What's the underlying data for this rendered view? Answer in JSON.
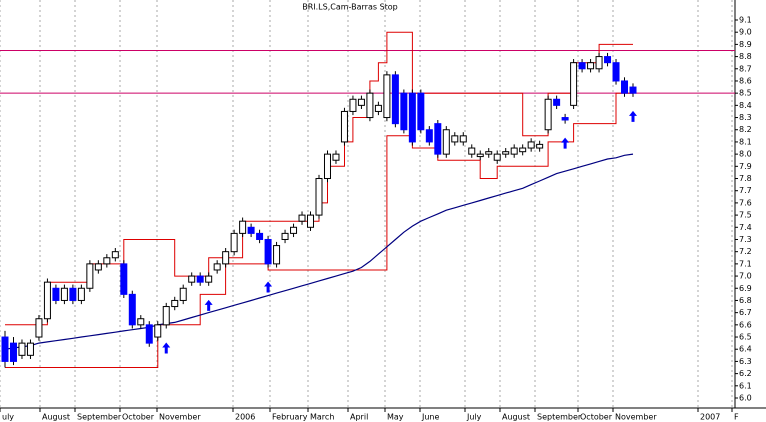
{
  "chart_data": {
    "type": "candlestick",
    "title": "BRI.LS,Cam-Barras Stop",
    "x_labels": [
      "uly",
      "August",
      "September",
      "October",
      "November",
      "2006",
      "February",
      "March",
      "April",
      "May",
      "June",
      "July",
      "August",
      "September",
      "October",
      "November",
      "2007",
      "F"
    ],
    "ylim": [
      6.0,
      9.1
    ],
    "yticks": [
      {
        "value": 6,
        "label": "6.0"
      },
      6.1,
      6.2,
      6.3,
      6.4,
      6.5,
      6.6,
      6.7,
      6.8,
      6.9,
      {
        "value": 7,
        "label": "7.0"
      },
      7.1,
      7.2,
      7.3,
      7.4,
      7.5,
      7.6,
      7.7,
      7.8,
      7.9,
      {
        "value": 8,
        "label": "8.0"
      },
      8.1,
      8.2,
      8.3,
      8.4,
      8.5,
      8.6,
      8.7,
      8.8,
      8.9,
      {
        "value": 9,
        "label": "9.0"
      },
      9.1
    ],
    "up_color": "#ffffff",
    "down_color": "#0000ff",
    "open": [
      6.5,
      6.45,
      6.35,
      6.35,
      6.5,
      6.65,
      6.9,
      6.8,
      6.9,
      6.8,
      6.9,
      7.05,
      7.1,
      7.15,
      7.1,
      6.85,
      6.6,
      6.6,
      6.5,
      6.6,
      6.75,
      6.8,
      6.95,
      7.0,
      6.95,
      7.05,
      7.1,
      7.2,
      7.35,
      7.4,
      7.35,
      7.3,
      7.1,
      7.3,
      7.35,
      7.45,
      7.4,
      7.5,
      7.8,
      7.95,
      8.1,
      8.35,
      8.4,
      8.3,
      8.35,
      8.3,
      8.65,
      8.5,
      8.5,
      8.5,
      8.2,
      8.25,
      8.0,
      8.1,
      8.1,
      8.0,
      7.98,
      8.0,
      7.95,
      8.0,
      8.0,
      8.02,
      8.05,
      8.05,
      8.2,
      8.45,
      8.3,
      8.4,
      8.75,
      8.7,
      8.7,
      8.8,
      8.75,
      8.6,
      8.55
    ],
    "high": [
      6.55,
      6.5,
      6.48,
      6.48,
      6.68,
      6.98,
      6.93,
      6.93,
      6.93,
      6.93,
      7.13,
      7.13,
      7.18,
      7.23,
      7.13,
      6.88,
      6.68,
      6.63,
      6.63,
      6.78,
      6.83,
      6.93,
      7.03,
      7.03,
      7.03,
      7.13,
      7.23,
      7.38,
      7.48,
      7.43,
      7.38,
      7.33,
      7.28,
      7.38,
      7.43,
      7.53,
      7.53,
      7.83,
      8.03,
      8.03,
      8.38,
      8.48,
      8.48,
      8.53,
      8.43,
      8.68,
      8.68,
      8.53,
      8.53,
      8.53,
      8.23,
      8.28,
      8.23,
      8.18,
      8.18,
      8.08,
      8.03,
      8.05,
      8.03,
      8.05,
      8.08,
      8.08,
      8.13,
      8.11,
      8.48,
      8.48,
      8.33,
      8.78,
      8.78,
      8.78,
      8.83,
      8.83,
      8.78,
      8.63,
      8.58
    ],
    "low": [
      6.25,
      6.27,
      6.32,
      6.32,
      6.47,
      6.62,
      6.77,
      6.77,
      6.77,
      6.77,
      6.87,
      7.02,
      7.07,
      7.12,
      6.82,
      6.57,
      6.57,
      6.42,
      6.47,
      6.57,
      6.72,
      6.77,
      6.92,
      6.92,
      6.92,
      7.02,
      7.07,
      7.17,
      7.32,
      7.32,
      7.27,
      7.07,
      7.07,
      7.27,
      7.32,
      7.42,
      7.37,
      7.47,
      7.77,
      7.92,
      8.07,
      8.32,
      8.37,
      8.27,
      8.32,
      8.27,
      8.22,
      8.17,
      8.07,
      8.17,
      8.07,
      7.97,
      7.97,
      8.07,
      8.07,
      7.97,
      7.95,
      7.97,
      7.92,
      7.97,
      7.97,
      7.99,
      8.02,
      8.02,
      8.17,
      8.37,
      8.25,
      8.37,
      8.67,
      8.67,
      8.67,
      8.72,
      8.57,
      8.47,
      8.47
    ],
    "close": [
      6.3,
      6.3,
      6.45,
      6.45,
      6.65,
      6.95,
      6.8,
      6.9,
      6.8,
      6.9,
      7.1,
      7.1,
      7.15,
      7.2,
      6.85,
      6.6,
      6.65,
      6.45,
      6.6,
      6.75,
      6.8,
      6.9,
      7.0,
      6.95,
      7.0,
      7.1,
      7.2,
      7.35,
      7.45,
      7.35,
      7.3,
      7.1,
      7.25,
      7.35,
      7.4,
      7.5,
      7.5,
      7.8,
      8.0,
      8.0,
      8.35,
      8.45,
      8.45,
      8.5,
      8.4,
      8.65,
      8.25,
      8.2,
      8.1,
      8.2,
      8.1,
      8.0,
      8.2,
      8.15,
      8.15,
      8.05,
      8.0,
      8.02,
      8.0,
      8.02,
      8.05,
      8.05,
      8.1,
      8.08,
      8.45,
      8.4,
      8.28,
      8.75,
      8.7,
      8.75,
      8.8,
      8.75,
      8.6,
      8.5,
      8.5
    ],
    "series": [
      {
        "color": "#dd0000",
        "values": [
          6.6,
          6.6,
          6.6,
          6.6,
          6.6,
          6.95,
          6.95,
          6.95,
          6.95,
          6.95,
          7.1,
          7.1,
          7.1,
          7.1,
          7.3,
          7.3,
          7.3,
          7.3,
          7.3,
          7.3,
          7.0,
          7.0,
          7.0,
          7.0,
          7.15,
          7.15,
          7.15,
          7.15,
          7.45,
          7.45,
          7.45,
          7.45,
          7.45,
          7.45,
          7.45,
          7.45,
          7.45,
          7.6,
          7.9,
          7.9,
          8.1,
          8.3,
          8.3,
          8.6,
          8.75,
          9.0,
          9.0,
          9.0,
          8.5,
          8.5,
          8.5,
          8.5,
          8.5,
          8.5,
          8.5,
          8.5,
          8.5,
          8.5,
          8.5,
          8.5,
          8.5,
          8.15,
          8.15,
          8.15,
          8.5,
          8.5,
          8.5,
          8.75,
          8.75,
          8.75,
          8.9,
          8.9,
          8.9,
          8.9,
          8.9
        ]
      },
      {
        "color": "#dd0000",
        "values": [
          6.25,
          6.25,
          6.25,
          6.25,
          6.25,
          6.25,
          6.25,
          6.25,
          6.25,
          6.25,
          6.25,
          6.25,
          6.25,
          6.25,
          6.25,
          6.25,
          6.25,
          6.25,
          6.6,
          6.6,
          6.6,
          6.6,
          6.6,
          6.85,
          6.85,
          6.85,
          7.1,
          7.1,
          7.1,
          7.1,
          7.1,
          7.05,
          7.05,
          7.05,
          7.05,
          7.05,
          7.05,
          7.05,
          7.05,
          7.05,
          7.05,
          7.05,
          7.05,
          7.05,
          7.05,
          8.15,
          8.15,
          8.15,
          8.05,
          8.05,
          8.05,
          7.95,
          7.95,
          7.95,
          7.95,
          7.95,
          7.8,
          7.8,
          7.9,
          7.9,
          7.9,
          7.9,
          7.9,
          7.9,
          8.1,
          8.1,
          8.1,
          8.25,
          8.25,
          8.25,
          8.25,
          8.25,
          8.5,
          8.5,
          8.5
        ]
      },
      {
        "color": "#000080",
        "values": [
          6.4,
          6.41,
          6.42,
          6.43,
          6.45,
          6.46,
          6.47,
          6.48,
          6.49,
          6.5,
          6.51,
          6.52,
          6.53,
          6.54,
          6.55,
          6.56,
          6.57,
          6.58,
          6.6,
          6.61,
          6.62,
          6.64,
          6.66,
          6.68,
          6.7,
          6.72,
          6.74,
          6.76,
          6.78,
          6.8,
          6.82,
          6.84,
          6.86,
          6.88,
          6.9,
          6.92,
          6.94,
          6.96,
          6.98,
          7.0,
          7.02,
          7.04,
          7.07,
          7.12,
          7.18,
          7.24,
          7.3,
          7.36,
          7.41,
          7.45,
          7.48,
          7.51,
          7.54,
          7.56,
          7.58,
          7.6,
          7.62,
          7.64,
          7.66,
          7.68,
          7.7,
          7.72,
          7.75,
          7.78,
          7.81,
          7.84,
          7.86,
          7.88,
          7.9,
          7.92,
          7.94,
          7.96,
          7.97,
          7.99,
          8.0
        ]
      }
    ],
    "hlines": {
      "color": "#cc0066",
      "values": [
        8.85,
        8.5
      ]
    }
  }
}
